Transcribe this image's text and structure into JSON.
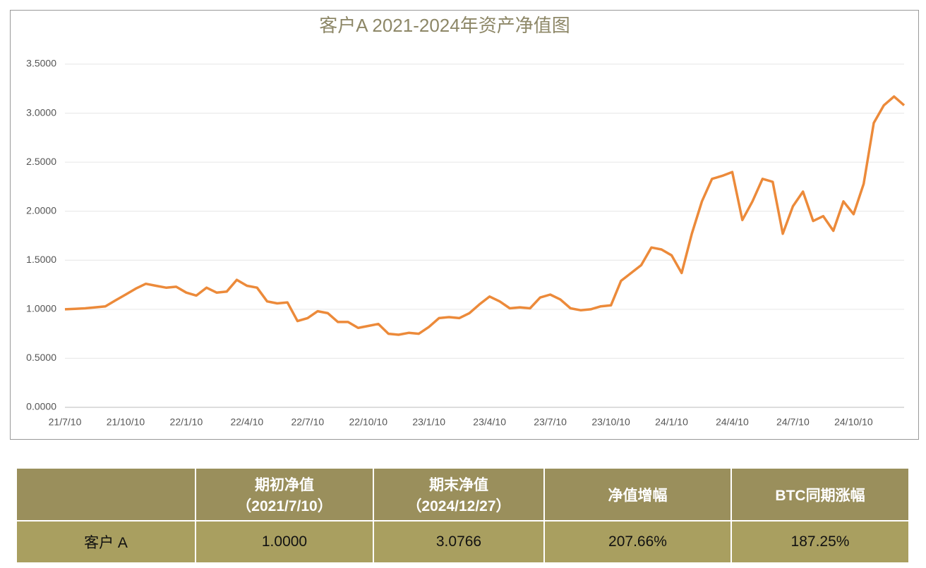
{
  "chart_data": {
    "type": "line",
    "title": "客户A 2021-2024年资产净值图",
    "categories": [
      "21/7/10",
      null,
      null,
      null,
      null,
      null,
      "21/10/10",
      null,
      null,
      null,
      null,
      null,
      "22/1/10",
      null,
      null,
      null,
      null,
      null,
      "22/4/10",
      null,
      null,
      null,
      null,
      null,
      "22/7/10",
      null,
      null,
      null,
      null,
      null,
      "22/10/10",
      null,
      null,
      null,
      null,
      null,
      "23/1/10",
      null,
      null,
      null,
      null,
      null,
      "23/4/10",
      null,
      null,
      null,
      null,
      null,
      "23/7/10",
      null,
      null,
      null,
      null,
      null,
      "23/10/10",
      null,
      null,
      null,
      null,
      null,
      "24/1/10",
      null,
      null,
      null,
      null,
      null,
      "24/4/10",
      null,
      null,
      null,
      null,
      null,
      "24/7/10",
      null,
      null,
      null,
      null,
      null,
      "24/10/10",
      null,
      null,
      null,
      null,
      null
    ],
    "values": [
      1.0,
      1.005,
      1.01,
      1.02,
      1.03,
      1.09,
      1.15,
      1.21,
      1.26,
      1.24,
      1.22,
      1.23,
      1.17,
      1.14,
      1.22,
      1.17,
      1.18,
      1.3,
      1.24,
      1.22,
      1.08,
      1.06,
      1.07,
      0.88,
      0.91,
      0.98,
      0.96,
      0.87,
      0.87,
      0.81,
      0.83,
      0.85,
      0.75,
      0.74,
      0.76,
      0.75,
      0.82,
      0.91,
      0.92,
      0.91,
      0.96,
      1.05,
      1.13,
      1.08,
      1.01,
      1.02,
      1.01,
      1.12,
      1.15,
      1.1,
      1.01,
      0.99,
      1.0,
      1.03,
      1.04,
      1.29,
      1.37,
      1.45,
      1.63,
      1.61,
      1.55,
      1.37,
      1.77,
      2.1,
      2.33,
      2.36,
      2.4,
      1.91,
      2.1,
      2.33,
      2.3,
      1.77,
      2.05,
      2.2,
      1.9,
      1.95,
      1.8,
      2.1,
      1.97,
      2.28,
      2.9,
      3.08,
      3.17,
      3.08
    ],
    "color": "#ec8a3a",
    "ylim": [
      0,
      3.5
    ],
    "yticks": [
      {
        "value": 0,
        "label": "0.0000"
      },
      {
        "value": 0.5,
        "label": "0.5000"
      },
      {
        "value": 1,
        "label": "1.0000"
      },
      {
        "value": 1.5,
        "label": "1.5000"
      },
      {
        "value": 2,
        "label": "2.0000"
      },
      {
        "value": 2.5,
        "label": "2.5000"
      },
      {
        "value": 3,
        "label": "3.0000"
      },
      {
        "value": 3.5,
        "label": "3.5000"
      }
    ],
    "grid": true
  },
  "table": {
    "header": [
      [
        "期初净值",
        "（2021/7/10）"
      ],
      [
        "期末净值",
        "（2024/12/27）"
      ],
      [
        "净值增幅"
      ],
      [
        "BTC同期涨幅"
      ]
    ],
    "rows": [
      [
        "客户 A",
        "1.0000",
        "3.0766",
        "207.66%",
        "187.25%"
      ]
    ]
  }
}
